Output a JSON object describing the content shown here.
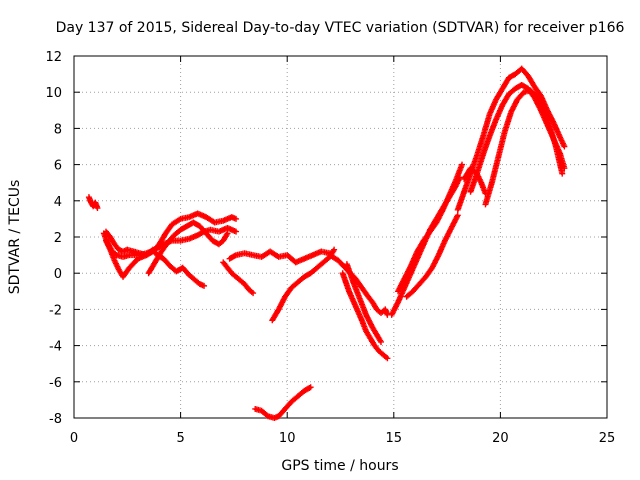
{
  "chart_data": {
    "type": "scatter",
    "title": "Day 137 of 2015, Sidereal Day-to-day VTEC variation (SDTVAR) for receiver p166",
    "xlabel": "GPS time / hours",
    "ylabel": "SDTVAR / TECUs",
    "xlim": [
      0,
      25
    ],
    "ylim": [
      -8,
      12
    ],
    "xticks": [
      0,
      5,
      10,
      15,
      20,
      25
    ],
    "yticks": [
      -8,
      -6,
      -4,
      -2,
      0,
      2,
      4,
      6,
      8,
      10,
      12
    ],
    "grid": true,
    "marker": "plus",
    "color": "#ff0000",
    "series": [
      {
        "x": [
          0.7,
          0.8,
          0.9,
          1.0,
          1.1
        ],
        "y": [
          4.2,
          3.9,
          3.7,
          3.9,
          3.6
        ]
      },
      {
        "x": [
          1.4,
          1.6,
          1.8,
          2.0,
          2.3,
          2.6,
          3.0,
          3.4,
          3.8,
          4.2,
          4.6,
          5.0,
          5.4,
          5.8,
          6.1,
          6.4,
          6.8,
          7.2,
          7.6
        ],
        "y": [
          2.2,
          1.6,
          1.2,
          1.0,
          0.9,
          1.0,
          1.0,
          1.1,
          1.3,
          1.6,
          1.8,
          1.8,
          1.9,
          2.1,
          2.3,
          2.4,
          2.3,
          2.5,
          2.3
        ]
      },
      {
        "x": [
          1.5,
          1.7,
          1.9,
          2.1,
          2.3,
          2.5,
          2.8,
          3.1,
          3.4,
          3.7,
          4.0,
          4.3,
          4.6,
          5.0,
          5.4,
          5.8,
          6.2,
          6.6,
          7.0,
          7.4,
          7.6
        ],
        "y": [
          2.3,
          2.0,
          1.6,
          1.3,
          1.2,
          1.3,
          1.2,
          1.1,
          1.0,
          1.2,
          1.6,
          2.2,
          2.7,
          3.0,
          3.1,
          3.3,
          3.1,
          2.8,
          2.9,
          3.1,
          3.0
        ]
      },
      {
        "x": [
          1.5,
          1.7,
          1.9,
          2.1,
          2.3,
          2.6,
          3.0,
          3.4,
          3.7,
          3.9,
          4.2,
          4.5,
          4.8,
          5.1,
          5.4,
          5.7,
          5.9,
          6.1
        ],
        "y": [
          1.8,
          1.3,
          0.7,
          0.2,
          -0.2,
          0.3,
          0.8,
          1.0,
          1.3,
          1.0,
          0.8,
          0.4,
          0.1,
          0.3,
          -0.1,
          -0.4,
          -0.6,
          -0.7
        ]
      },
      {
        "x": [
          3.5,
          3.8,
          4.1,
          4.4,
          4.7,
          5.0,
          5.3,
          5.6,
          5.9,
          6.2,
          6.5,
          6.8,
          7.0,
          7.2
        ],
        "y": [
          0.0,
          0.6,
          1.2,
          1.7,
          2.1,
          2.4,
          2.6,
          2.8,
          2.6,
          2.2,
          1.8,
          1.6,
          1.8,
          2.2
        ]
      },
      {
        "x": [
          7.0,
          7.2,
          7.4,
          7.6,
          7.8,
          8.0,
          8.2,
          8.4
        ],
        "y": [
          0.6,
          0.3,
          0.0,
          -0.2,
          -0.4,
          -0.6,
          -0.9,
          -1.1
        ]
      },
      {
        "x": [
          7.3,
          7.6,
          8.0,
          8.4,
          8.8,
          9.2,
          9.6,
          10.0,
          10.4,
          10.8,
          11.2,
          11.6,
          12.0
        ],
        "y": [
          0.8,
          1.0,
          1.1,
          1.0,
          0.9,
          1.2,
          0.9,
          1.0,
          0.6,
          0.8,
          1.0,
          1.2,
          1.1
        ]
      },
      {
        "x": [
          9.3,
          9.6,
          9.9,
          10.2,
          10.5,
          10.8,
          11.1,
          11.4,
          11.7,
          12.0,
          12.2
        ],
        "y": [
          -2.6,
          -2.0,
          -1.3,
          -0.8,
          -0.5,
          -0.2,
          0.0,
          0.3,
          0.6,
          0.9,
          1.3
        ]
      },
      {
        "x": [
          12.0,
          12.4,
          12.8,
          13.2,
          13.5,
          13.8,
          14.0,
          14.2,
          14.4,
          14.6,
          14.7
        ],
        "y": [
          1.0,
          0.7,
          0.2,
          -0.3,
          -0.8,
          -1.3,
          -1.6,
          -2.0,
          -2.2,
          -2.0,
          -2.3
        ]
      },
      {
        "x": [
          12.6,
          12.9,
          13.2,
          13.5,
          13.7,
          13.9,
          14.1,
          14.3,
          14.5,
          14.7
        ],
        "y": [
          0.0,
          -1.0,
          -1.8,
          -2.6,
          -3.2,
          -3.6,
          -4.0,
          -4.3,
          -4.5,
          -4.7
        ]
      },
      {
        "x": [
          12.8,
          13.1,
          13.4,
          13.7,
          14.0,
          14.2,
          14.4
        ],
        "y": [
          0.5,
          -0.5,
          -1.4,
          -2.3,
          -3.0,
          -3.4,
          -3.8
        ]
      },
      {
        "x": [
          8.5,
          8.8,
          9.1,
          9.4,
          9.6,
          9.9,
          10.2,
          10.5,
          10.8,
          11.1
        ],
        "y": [
          -7.5,
          -7.6,
          -7.9,
          -8.0,
          -7.9,
          -7.5,
          -7.1,
          -6.8,
          -6.5,
          -6.3
        ]
      },
      {
        "x": [
          14.9,
          15.2,
          15.5,
          15.8,
          16.1,
          16.4,
          16.7,
          17.0,
          17.3,
          17.6,
          17.9,
          18.1
        ],
        "y": [
          -2.3,
          -1.6,
          -0.8,
          0.0,
          0.8,
          1.6,
          2.4,
          3.0,
          3.6,
          4.2,
          4.8,
          5.3
        ]
      },
      {
        "x": [
          15.2,
          15.5,
          15.8,
          16.1,
          16.4,
          16.7,
          17.0,
          17.3,
          17.6,
          17.9,
          18.2
        ],
        "y": [
          -1.0,
          -0.3,
          0.4,
          1.2,
          1.8,
          2.3,
          2.8,
          3.5,
          4.3,
          5.1,
          6.0
        ]
      },
      {
        "x": [
          15.6,
          15.9,
          16.2,
          16.5,
          16.8,
          17.1,
          17.4,
          17.7,
          18.0
        ],
        "y": [
          -1.3,
          -1.0,
          -0.6,
          -0.2,
          0.3,
          1.0,
          1.8,
          2.5,
          3.2
        ]
      },
      {
        "x": [
          18.0,
          18.3,
          18.6,
          18.9,
          19.2,
          19.5,
          19.8,
          20.1,
          20.4,
          20.7,
          21.0,
          21.3,
          21.6,
          21.9,
          22.2,
          22.5,
          22.8,
          23.0
        ],
        "y": [
          3.5,
          4.5,
          5.5,
          6.5,
          7.6,
          8.8,
          9.6,
          10.2,
          10.8,
          11.0,
          11.3,
          10.9,
          10.3,
          9.8,
          9.0,
          8.3,
          7.5,
          7.0
        ]
      },
      {
        "x": [
          18.6,
          18.9,
          19.2,
          19.5,
          19.8,
          20.1,
          20.4,
          20.7,
          21.0,
          21.3,
          21.6,
          21.9,
          22.2,
          22.5,
          22.8,
          23.0
        ],
        "y": [
          4.5,
          5.5,
          6.6,
          7.6,
          8.5,
          9.3,
          9.9,
          10.2,
          10.4,
          10.2,
          9.7,
          9.0,
          8.2,
          7.4,
          6.6,
          5.8
        ]
      },
      {
        "x": [
          19.3,
          19.6,
          19.9,
          20.2,
          20.5,
          20.8,
          21.1,
          21.4,
          21.7,
          22.0,
          22.3,
          22.6,
          22.9
        ],
        "y": [
          3.8,
          5.0,
          6.4,
          7.8,
          8.9,
          9.6,
          10.0,
          10.1,
          9.8,
          9.2,
          8.2,
          7.0,
          5.5
        ]
      },
      {
        "x": [
          18.3,
          18.6,
          18.9,
          19.1,
          19.3
        ],
        "y": [
          5.2,
          5.8,
          5.5,
          5.0,
          4.4
        ]
      }
    ]
  }
}
